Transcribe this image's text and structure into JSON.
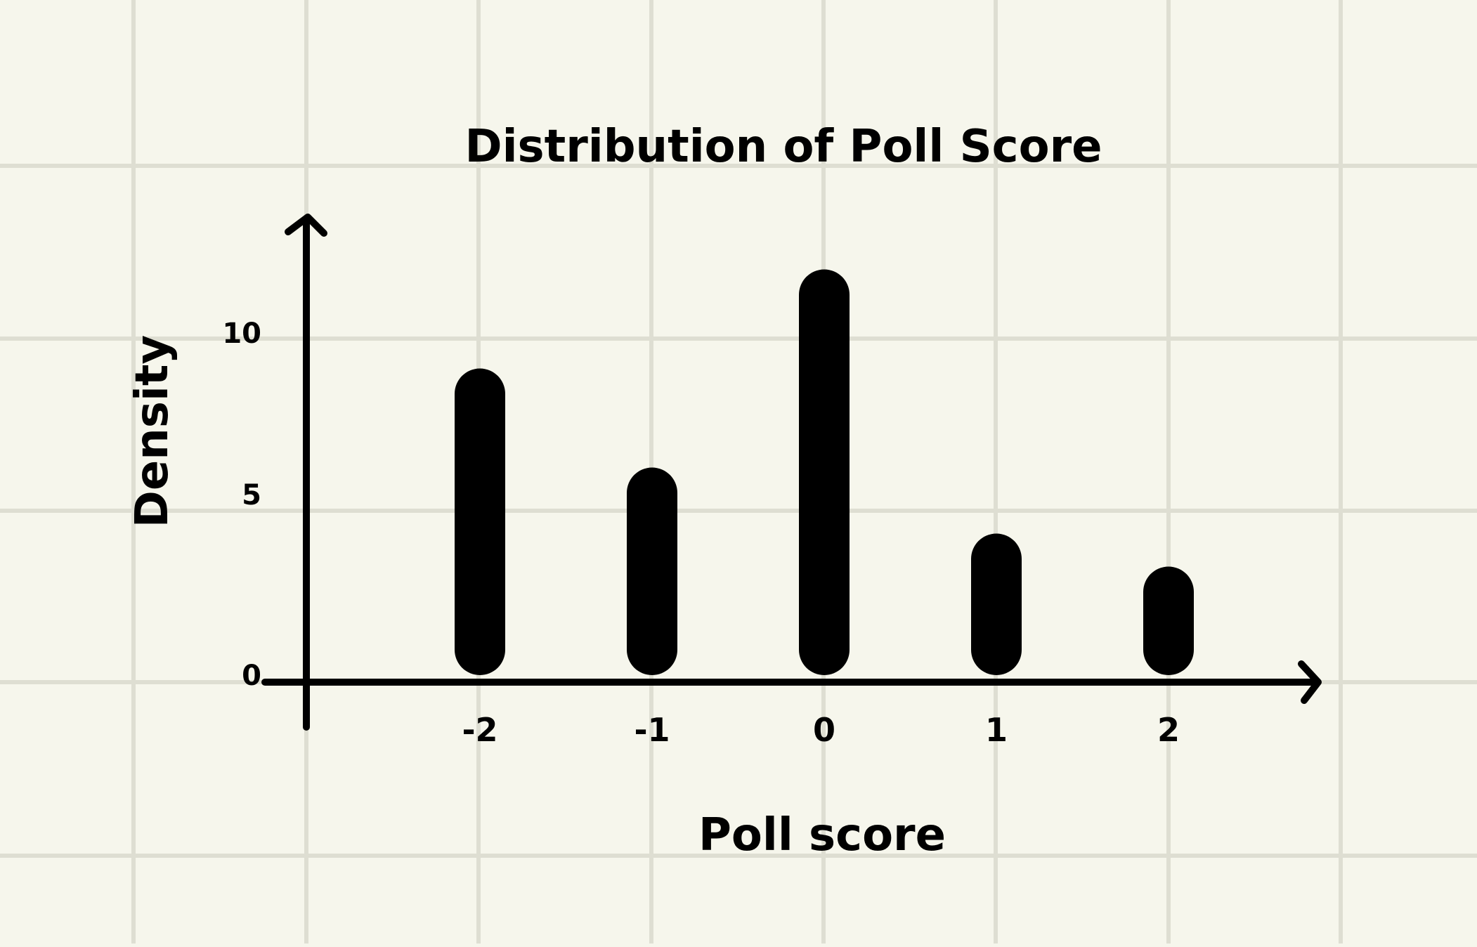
{
  "chart_data": {
    "type": "bar",
    "title": "Distribution of Poll Score",
    "xlabel": "Poll score",
    "ylabel": "Density",
    "categories": [
      "-2",
      "-1",
      "0",
      "1",
      "2"
    ],
    "values": [
      9.5,
      6.5,
      12.5,
      4.5,
      3.5
    ],
    "ylim": [
      0,
      14
    ],
    "yticks": [
      "0",
      "5",
      "10"
    ],
    "grid": true,
    "colors": {
      "background": "#f6f6ec",
      "grid": "#deded2",
      "ink": "#000000"
    }
  }
}
